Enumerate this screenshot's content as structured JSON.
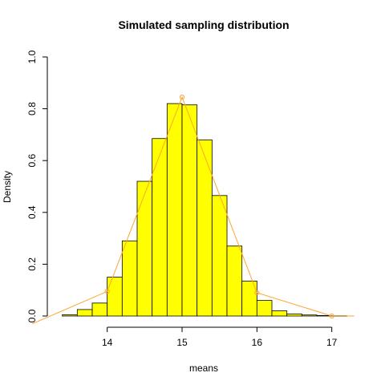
{
  "chart_data": {
    "type": "bar",
    "title": "Simulated sampling distribution",
    "xlabel": "means",
    "ylabel": "Density",
    "xlim": [
      13.2,
      17.4
    ],
    "ylim": [
      0,
      1.0
    ],
    "x_ticks": [
      14,
      15,
      16,
      17
    ],
    "y_ticks": [
      0.0,
      0.2,
      0.4,
      0.6,
      0.8,
      1.0
    ],
    "y_tick_labels": [
      "0.0",
      "0.2",
      "0.4",
      "0.6",
      "0.8",
      "1.0"
    ],
    "histogram": {
      "fill": "#ffff00",
      "stroke": "#000000",
      "bin_width": 0.2,
      "bins": [
        {
          "x0": 13.4,
          "x1": 13.6,
          "density": 0.005
        },
        {
          "x0": 13.6,
          "x1": 13.8,
          "density": 0.025
        },
        {
          "x0": 13.8,
          "x1": 14.0,
          "density": 0.05
        },
        {
          "x0": 14.0,
          "x1": 14.2,
          "density": 0.15
        },
        {
          "x0": 14.2,
          "x1": 14.4,
          "density": 0.29
        },
        {
          "x0": 14.4,
          "x1": 14.6,
          "density": 0.52
        },
        {
          "x0": 14.6,
          "x1": 14.8,
          "density": 0.685
        },
        {
          "x0": 14.8,
          "x1": 15.0,
          "density": 0.82
        },
        {
          "x0": 15.0,
          "x1": 15.2,
          "density": 0.815
        },
        {
          "x0": 15.2,
          "x1": 15.4,
          "density": 0.68
        },
        {
          "x0": 15.4,
          "x1": 15.6,
          "density": 0.465
        },
        {
          "x0": 15.6,
          "x1": 15.8,
          "density": 0.27
        },
        {
          "x0": 15.8,
          "x1": 16.0,
          "density": 0.135
        },
        {
          "x0": 16.0,
          "x1": 16.2,
          "density": 0.06
        },
        {
          "x0": 16.2,
          "x1": 16.4,
          "density": 0.02
        },
        {
          "x0": 16.4,
          "x1": 16.6,
          "density": 0.008
        },
        {
          "x0": 16.6,
          "x1": 16.8,
          "density": 0.004
        },
        {
          "x0": 16.8,
          "x1": 17.0,
          "density": 0.002
        },
        {
          "x0": 17.0,
          "x1": 17.2,
          "density": 0.001
        }
      ]
    },
    "overlay": {
      "color": "#ffa431",
      "points": [
        {
          "x": 13.0,
          "y": -0.03
        },
        {
          "x": 14.0,
          "y": 0.095
        },
        {
          "x": 15.0,
          "y": 0.845
        },
        {
          "x": 16.0,
          "y": 0.09
        },
        {
          "x": 17.0,
          "y": 0.0
        },
        {
          "x": 17.3,
          "y": 0.0
        }
      ],
      "marker_points": [
        {
          "x": 14.0,
          "y": 0.095
        },
        {
          "x": 15.0,
          "y": 0.845
        },
        {
          "x": 16.0,
          "y": 0.09
        },
        {
          "x": 17.0,
          "y": 0.0
        }
      ]
    },
    "grid": false,
    "legend": "none"
  }
}
